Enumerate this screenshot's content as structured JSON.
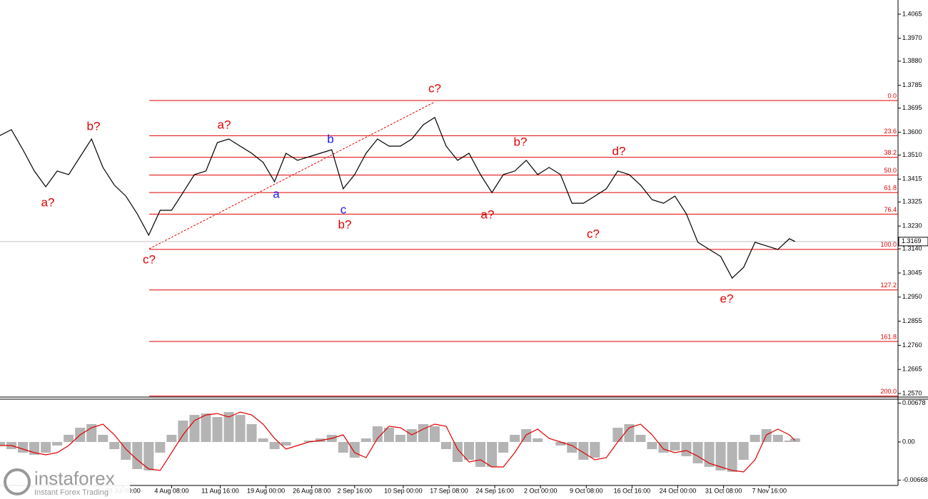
{
  "chart_data": [
    {
      "type": "line",
      "color": "#000000",
      "xlim": [
        0,
        157
      ],
      "x": [
        0,
        2,
        4,
        6,
        8,
        10,
        12,
        14,
        16,
        18,
        20,
        22,
        24,
        26,
        28,
        30,
        32,
        34,
        36,
        38,
        40,
        42,
        44,
        46,
        48,
        50,
        52,
        54,
        56,
        58,
        60,
        62,
        64,
        66,
        68,
        70,
        72,
        74,
        76,
        78,
        80,
        82,
        84,
        86,
        88,
        90,
        92,
        94,
        96,
        98,
        100,
        102,
        104,
        106,
        108,
        110,
        112,
        114,
        116,
        118,
        120,
        122,
        124,
        126,
        128,
        130,
        132,
        134,
        136,
        138,
        139
      ],
      "values": [
        1.3587,
        1.361,
        1.3531,
        1.3447,
        1.3385,
        1.3447,
        1.3433,
        1.3503,
        1.3573,
        1.3461,
        1.3391,
        1.3348,
        1.3278,
        1.3194,
        1.3292,
        1.3292,
        1.3362,
        1.3433,
        1.3447,
        1.3559,
        1.3573,
        1.3545,
        1.3517,
        1.3481,
        1.3405,
        1.3517,
        1.3489,
        1.3503,
        1.3517,
        1.3531,
        1.3377,
        1.3433,
        1.3517,
        1.3573,
        1.3545,
        1.3545,
        1.3573,
        1.3629,
        1.3658,
        1.3545,
        1.3489,
        1.3517,
        1.3433,
        1.3362,
        1.3433,
        1.3447,
        1.3489,
        1.3433,
        1.3461,
        1.3433,
        1.332,
        1.332,
        1.3348,
        1.3377,
        1.3447,
        1.3433,
        1.3391,
        1.3334,
        1.332,
        1.3348,
        1.3278,
        1.3166,
        1.3138,
        1.311,
        1.3025,
        1.3067,
        1.3166,
        1.3152,
        1.3138,
        1.318,
        1.3169
      ],
      "ylim": [
        1.2556,
        1.4121
      ],
      "yticks": [
        1.4065,
        {
          "value": 1.397,
          "label": "1.3970"
        },
        {
          "value": 1.388,
          "label": "1.3880"
        },
        1.3785,
        1.3695,
        {
          "value": 1.36,
          "label": "1.3600"
        },
        {
          "value": 1.351,
          "label": "1.3510"
        },
        1.3415,
        1.3325,
        {
          "value": 1.323,
          "label": "1.3230"
        },
        {
          "value": 1.314,
          "label": "1.3140"
        },
        1.3045,
        {
          "value": 1.295,
          "label": "1.2950"
        },
        1.2855,
        {
          "value": 1.276,
          "label": "1.2760"
        },
        1.2665,
        {
          "value": 1.257,
          "label": "1.2570"
        }
      ],
      "xticks": [
        {
          "value": 21.5,
          "label": "28 Jul 00:00"
        },
        {
          "value": 30,
          "label": "4 Aug 08:00"
        },
        {
          "value": 38.5,
          "label": "11 Aug 16:00"
        },
        {
          "value": 46.5,
          "label": "19 Aug 00:00"
        },
        {
          "value": 54.5,
          "label": "26 Aug 08:00"
        },
        {
          "value": 62,
          "label": "2 Sep 16:00"
        },
        {
          "value": 70.5,
          "label": "10 Sep 00:00"
        },
        {
          "value": 78.5,
          "label": "17 Sep 08:00"
        },
        {
          "value": 86.5,
          "label": "24 Sep 16:00"
        },
        {
          "value": 94.5,
          "label": "2 Oct 00:00"
        },
        {
          "value": 102.5,
          "label": "9 Oct 08:00"
        },
        {
          "value": 110.5,
          "label": "16 Oct 16:00"
        },
        {
          "value": 118.5,
          "label": "24 Oct 00:00"
        },
        {
          "value": 126.5,
          "label": "31 Oct 08:00"
        },
        {
          "value": 134.5,
          "label": "7 Nov 16:00"
        }
      ],
      "current_price": 1.3169,
      "fib_color": "#e00000",
      "fib_levels": [
        {
          "label": "0.0",
          "price": 1.3725
        },
        {
          "label": "23.6",
          "price": 1.3586
        },
        {
          "label": "38.2",
          "price": 1.3501
        },
        {
          "label": "50.0",
          "price": 1.3431
        },
        {
          "label": "61.8",
          "price": 1.3362
        },
        {
          "label": "76.4",
          "price": 1.3277
        },
        {
          "label": "100.0",
          "price": 1.3138
        },
        {
          "label": "127.2",
          "price": 1.2978
        },
        {
          "label": "161.8",
          "price": 1.2775
        },
        {
          "label": "200.0",
          "price": 1.256
        }
      ],
      "annotations": [
        {
          "text": "a?",
          "color": "#e00000"
        },
        {
          "text": "b?",
          "color": "#e00000"
        },
        {
          "text": "c?",
          "color": "#e00000"
        },
        {
          "text": "a?",
          "color": "#e00000"
        },
        {
          "text": "a",
          "color": "#1a1aff"
        },
        {
          "text": "b",
          "color": "#1a1aff"
        },
        {
          "text": "c",
          "color": "#1a1aff"
        },
        {
          "text": "b?",
          "color": "#e00000"
        },
        {
          "text": "c?",
          "color": "#e00000"
        },
        {
          "text": "a?",
          "color": "#e00000"
        },
        {
          "text": "b?",
          "color": "#e00000"
        },
        {
          "text": "d?",
          "color": "#e00000"
        },
        {
          "text": "c?",
          "color": "#e00000"
        },
        {
          "text": "e?",
          "color": "#e00000"
        }
      ]
    },
    {
      "type": "macd",
      "histogram_color": "#b4b4b4",
      "signal_color": "#e00000",
      "ylim": [
        -0.00748,
        0.00748
      ],
      "yticks": [
        0.00678,
        {
          "value": 0,
          "label": "0.00"
        },
        -0.00668
      ],
      "histogram": [
        -0.00062,
        -0.00125,
        -0.00187,
        -0.00224,
        -0.00187,
        -0.00062,
        0.00125,
        0.00249,
        0.00312,
        0.00125,
        -0.00125,
        -0.00312,
        -0.00473,
        -0.00498,
        -0.00187,
        0.00125,
        0.00374,
        0.00473,
        0.00498,
        0.00436,
        0.00523,
        0.00473,
        0.00312,
        0.00062,
        -0.00125,
        -0.00062,
        0,
        0.00025,
        0.00062,
        0.00125,
        -0.00187,
        -0.00274,
        0.00062,
        0.00274,
        0.00249,
        0.00125,
        0.00224,
        0.00312,
        0.00274,
        -0.00125,
        -0.00349,
        -0.00312,
        -0.00436,
        -0.00436,
        -0.00187,
        0.00125,
        0.00224,
        0.00062,
        0,
        -0.00062,
        -0.00187,
        -0.00312,
        -0.00274,
        0,
        0.00249,
        0.00312,
        0.00125,
        -0.00125,
        -0.00187,
        -0.0015,
        -0.00249,
        -0.00374,
        -0.00436,
        -0.00498,
        -0.00523,
        -0.00312,
        0.00125,
        0.00224,
        0.00125,
        0.00025,
        0.00062
      ],
      "signal": [
        -0.00062,
        -0.00062,
        -0.00125,
        -0.00187,
        -0.00224,
        -0.00187,
        -0.00062,
        0.00125,
        0.00249,
        0.00312,
        0.00125,
        -0.00125,
        -0.00312,
        -0.00473,
        -0.00498,
        -0.00187,
        0.00125,
        0.00374,
        0.00473,
        0.00498,
        0.00436,
        0.00523,
        0.00473,
        0.00312,
        0.00062,
        -0.00125,
        -0.00062,
        0,
        0.00025,
        0.00062,
        0.00125,
        -0.00187,
        -0.00274,
        0.00062,
        0.00274,
        0.00249,
        0.00125,
        0.00224,
        0.00312,
        0.00274,
        -0.00125,
        -0.00349,
        -0.00312,
        -0.00436,
        -0.00436,
        -0.00187,
        0.00125,
        0.00224,
        0.00062,
        0,
        -0.00062,
        -0.00187,
        -0.00312,
        -0.00274,
        0,
        0.00249,
        0.00312,
        0.00125,
        -0.00125,
        -0.00187,
        -0.0015,
        -0.00249,
        -0.00374,
        -0.00436,
        -0.00498,
        -0.00523,
        -0.00312,
        0.00125,
        0.00224,
        0.00125,
        0.00025
      ]
    }
  ],
  "branding": {
    "name": "instaforex",
    "tagline": "Instant Forex Trading"
  }
}
